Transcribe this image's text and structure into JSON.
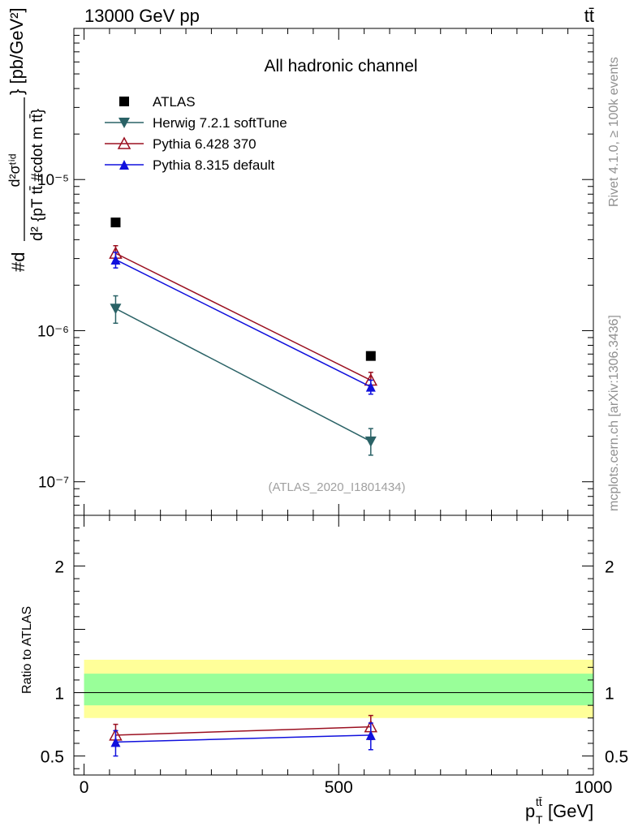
{
  "header": {
    "left": "13000 GeV pp",
    "right": "tt̄"
  },
  "side": {
    "rivet": "Rivet 4.1.0, ≥ 100k events",
    "mcplots": "mcplots.cern.ch [arXiv:1306.3436]"
  },
  "colors": {
    "atlas": "#000000",
    "herwig": "#2a6266",
    "pythia6": "#9b1020",
    "pythia8": "#1010dd",
    "band_inner": "#99ff99",
    "band_outer": "#ffff99"
  },
  "chart_data": [
    {
      "type": "line",
      "panel": "main",
      "title": "All hadronic channel",
      "watermark": "(ATLAS_2020_I1801434)",
      "ylabel": {
        "prefix": "#d",
        "num": "d²σᵗⁱᵈ",
        "den_d2": "d²",
        "den_rest": "{pT tt̄ #cdot m tt̄}",
        "units": "} [pb/GeV²]"
      },
      "yscale": "log",
      "ylim": [
        6e-08,
        0.0001
      ],
      "y_ticks": [
        {
          "value": 1e-07,
          "label": "10⁻⁷"
        },
        {
          "value": 1e-06,
          "label": "10⁻⁶"
        },
        {
          "value": 1e-05,
          "label": "10⁻⁵"
        }
      ],
      "xlim": [
        -20,
        1000
      ],
      "x": [
        62,
        563
      ],
      "legend_position": "top-left",
      "series": [
        {
          "key": "atlas",
          "name": "ATLAS",
          "marker": "square",
          "values": [
            5.2e-06,
            6.8e-07
          ],
          "errors": [
            [
              0,
              0
            ],
            [
              0,
              0
            ]
          ],
          "line": false
        },
        {
          "key": "herwig",
          "name": "Herwig 7.2.1 softTune",
          "marker": "triangle-down",
          "values": [
            1.4e-06,
            1.85e-07
          ],
          "errors": [
            [
              1.12e-06,
              1.7e-06
            ],
            [
              1.5e-07,
              2.25e-07
            ]
          ],
          "line": true
        },
        {
          "key": "pythia6",
          "name": "Pythia 6.428 370",
          "marker": "triangle-up-open",
          "values": [
            3.25e-06,
            4.7e-07
          ],
          "errors": [
            [
              2.9e-06,
              3.65e-06
            ],
            [
              4.2e-07,
              5.3e-07
            ]
          ],
          "line": true
        },
        {
          "key": "pythia8",
          "name": "Pythia 8.315 default",
          "marker": "triangle-up",
          "values": [
            2.95e-06,
            4.25e-07
          ],
          "errors": [
            [
              2.6e-06,
              3.3e-06
            ],
            [
              3.8e-07,
              4.7e-07
            ]
          ],
          "line": true
        }
      ]
    },
    {
      "type": "line",
      "panel": "ratio",
      "ylabel": "Ratio to ATLAS",
      "xlabel": "p",
      "xlabel_sub": "T",
      "xlabel_sup": "tt̄",
      "xlabel_units": " [GeV]",
      "ylim": [
        0.35,
        2.4
      ],
      "y_ticks": [
        {
          "value": 0.5,
          "label": "0.5"
        },
        {
          "value": 1,
          "label": "1"
        },
        {
          "value": 2,
          "label": "2"
        }
      ],
      "xlim": [
        -20,
        1000
      ],
      "x_ticks": [
        {
          "value": 0,
          "label": "0"
        },
        {
          "value": 500,
          "label": "500"
        },
        {
          "value": 1000,
          "label": "1000"
        }
      ],
      "bands": {
        "outer": [
          0.8,
          1.26
        ],
        "inner": [
          0.9,
          1.15
        ],
        "xrange": [
          0,
          1000
        ]
      },
      "x": [
        62,
        563
      ],
      "series": [
        {
          "key": "pythia6",
          "values": [
            0.665,
            0.73
          ],
          "errors": [
            [
              0.59,
              0.75
            ],
            [
              0.63,
              0.82
            ]
          ]
        },
        {
          "key": "pythia8",
          "values": [
            0.61,
            0.665
          ],
          "errors": [
            [
              0.5,
              0.7
            ],
            [
              0.55,
              0.76
            ]
          ]
        }
      ]
    }
  ]
}
